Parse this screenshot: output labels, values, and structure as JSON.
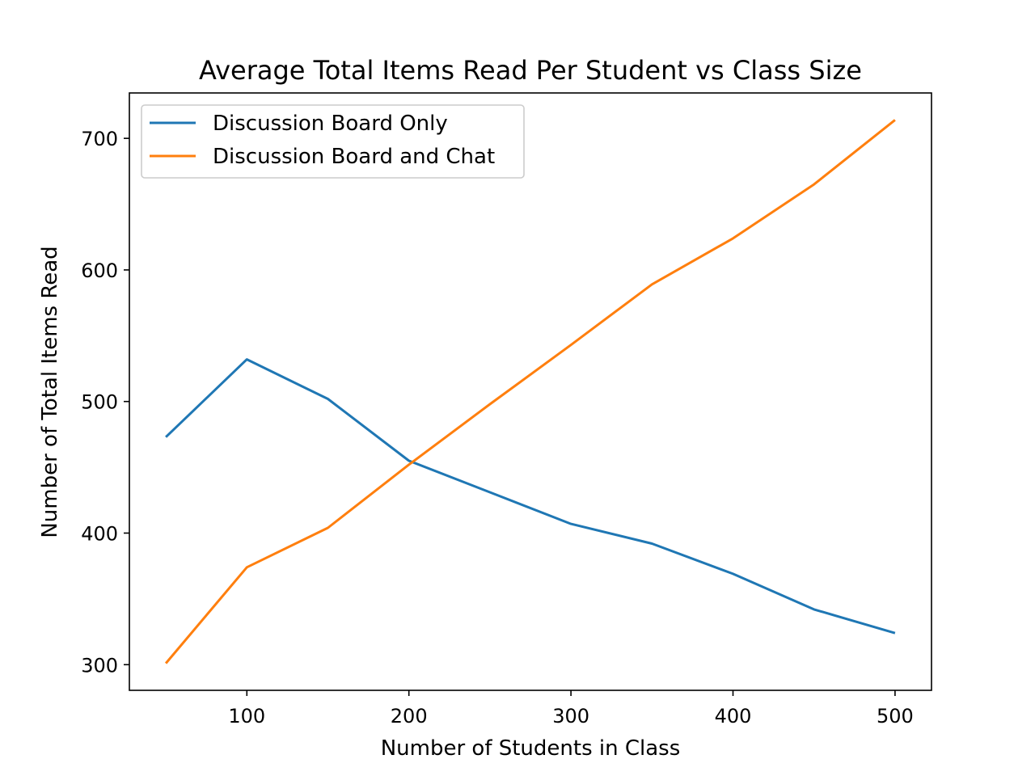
{
  "chart_data": {
    "type": "line",
    "title": "Average Total Items Read Per Student vs Class Size",
    "xlabel": "Number of Students in Class",
    "ylabel": "Number of Total Items Read",
    "x": [
      50,
      100,
      150,
      200,
      250,
      300,
      350,
      400,
      450,
      500
    ],
    "xlim": [
      27.5,
      522.5
    ],
    "ylim": [
      280.5,
      734.5
    ],
    "xticks": [
      100,
      200,
      300,
      400,
      500
    ],
    "yticks": [
      300,
      400,
      500,
      600,
      700
    ],
    "grid": false,
    "legend_position": "upper-left",
    "series": [
      {
        "name": "Discussion Board Only",
        "color": "#1f77b4",
        "values": [
          473,
          532,
          502,
          455,
          431,
          407,
          392,
          369,
          342,
          324
        ]
      },
      {
        "name": "Discussion Board and Chat",
        "color": "#ff7f0e",
        "values": [
          301,
          374,
          404,
          452,
          498,
          543,
          589,
          624,
          665,
          714
        ]
      }
    ]
  }
}
